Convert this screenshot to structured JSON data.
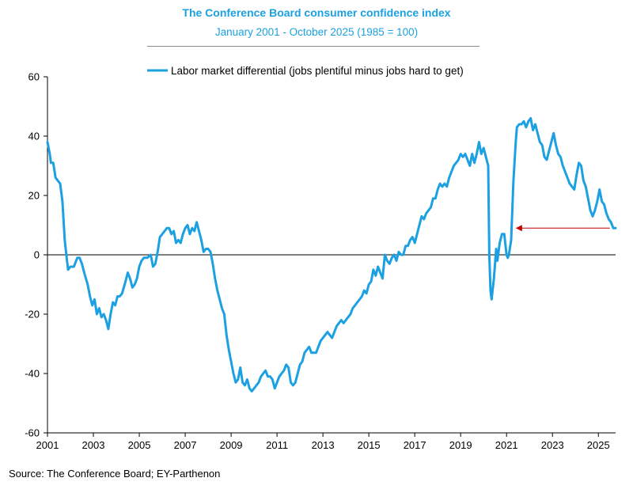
{
  "chart_data": {
    "type": "line",
    "title": "The Conference Board consumer confidence index",
    "subtitle": "January 2001 - October 2025 (1985 = 100)",
    "xlabel": "",
    "ylabel": "",
    "xlim": [
      2001,
      2025.75
    ],
    "ylim": [
      -60,
      60
    ],
    "yticks": [
      -60,
      -40,
      -20,
      0,
      20,
      40,
      60
    ],
    "xticks": [
      2001,
      2003,
      2005,
      2007,
      2009,
      2011,
      2013,
      2015,
      2017,
      2019,
      2021,
      2023,
      2025
    ],
    "legend_position": "top-center",
    "grid": false,
    "series": [
      {
        "name": "Labor market differential (jobs plentiful minus jobs hard to get)",
        "color": "#1ba1e2",
        "points": [
          [
            2001.0,
            38
          ],
          [
            2001.1,
            34
          ],
          [
            2001.15,
            31
          ],
          [
            2001.25,
            31
          ],
          [
            2001.35,
            26
          ],
          [
            2001.45,
            25
          ],
          [
            2001.55,
            24
          ],
          [
            2001.65,
            18
          ],
          [
            2001.75,
            5
          ],
          [
            2001.85,
            -2
          ],
          [
            2001.9,
            -5
          ],
          [
            2002.0,
            -4
          ],
          [
            2002.15,
            -4
          ],
          [
            2002.3,
            -1
          ],
          [
            2002.4,
            -1
          ],
          [
            2002.5,
            -3
          ],
          [
            2002.6,
            -6
          ],
          [
            2002.75,
            -10
          ],
          [
            2002.85,
            -14
          ],
          [
            2002.95,
            -17
          ],
          [
            2003.05,
            -15
          ],
          [
            2003.15,
            -20
          ],
          [
            2003.25,
            -18
          ],
          [
            2003.35,
            -21
          ],
          [
            2003.45,
            -20
          ],
          [
            2003.55,
            -22
          ],
          [
            2003.65,
            -25
          ],
          [
            2003.75,
            -20
          ],
          [
            2003.85,
            -16
          ],
          [
            2003.95,
            -17
          ],
          [
            2004.05,
            -14
          ],
          [
            2004.15,
            -14
          ],
          [
            2004.25,
            -13
          ],
          [
            2004.4,
            -9
          ],
          [
            2004.5,
            -6
          ],
          [
            2004.6,
            -8
          ],
          [
            2004.7,
            -11
          ],
          [
            2004.8,
            -10
          ],
          [
            2004.9,
            -8
          ],
          [
            2005.0,
            -4
          ],
          [
            2005.1,
            -2
          ],
          [
            2005.2,
            -1
          ],
          [
            2005.35,
            -1
          ],
          [
            2005.5,
            0
          ],
          [
            2005.6,
            -4
          ],
          [
            2005.7,
            -3
          ],
          [
            2005.8,
            1
          ],
          [
            2005.9,
            6
          ],
          [
            2006.0,
            7
          ],
          [
            2006.1,
            8
          ],
          [
            2006.2,
            9
          ],
          [
            2006.3,
            9
          ],
          [
            2006.4,
            7
          ],
          [
            2006.5,
            8
          ],
          [
            2006.6,
            4
          ],
          [
            2006.7,
            5
          ],
          [
            2006.8,
            4
          ],
          [
            2006.9,
            7
          ],
          [
            2007.0,
            9
          ],
          [
            2007.1,
            10
          ],
          [
            2007.2,
            7
          ],
          [
            2007.3,
            9
          ],
          [
            2007.4,
            8
          ],
          [
            2007.5,
            11
          ],
          [
            2007.6,
            8
          ],
          [
            2007.7,
            5
          ],
          [
            2007.8,
            1
          ],
          [
            2007.9,
            2
          ],
          [
            2008.0,
            2
          ],
          [
            2008.1,
            1
          ],
          [
            2008.2,
            -3
          ],
          [
            2008.3,
            -8
          ],
          [
            2008.4,
            -12
          ],
          [
            2008.5,
            -15
          ],
          [
            2008.6,
            -18
          ],
          [
            2008.7,
            -20
          ],
          [
            2008.8,
            -27
          ],
          [
            2008.9,
            -32
          ],
          [
            2009.0,
            -36
          ],
          [
            2009.1,
            -40
          ],
          [
            2009.2,
            -43
          ],
          [
            2009.3,
            -42
          ],
          [
            2009.4,
            -38
          ],
          [
            2009.5,
            -43
          ],
          [
            2009.6,
            -44
          ],
          [
            2009.7,
            -42
          ],
          [
            2009.8,
            -45
          ],
          [
            2009.9,
            -46
          ],
          [
            2010.0,
            -45
          ],
          [
            2010.1,
            -44
          ],
          [
            2010.2,
            -43
          ],
          [
            2010.3,
            -41
          ],
          [
            2010.4,
            -40
          ],
          [
            2010.5,
            -39
          ],
          [
            2010.6,
            -41
          ],
          [
            2010.7,
            -41
          ],
          [
            2010.8,
            -42
          ],
          [
            2010.9,
            -45
          ],
          [
            2011.0,
            -43
          ],
          [
            2011.1,
            -41
          ],
          [
            2011.2,
            -40
          ],
          [
            2011.3,
            -39
          ],
          [
            2011.4,
            -37
          ],
          [
            2011.5,
            -38
          ],
          [
            2011.6,
            -43
          ],
          [
            2011.7,
            -44
          ],
          [
            2011.8,
            -43
          ],
          [
            2011.9,
            -40
          ],
          [
            2012.0,
            -37
          ],
          [
            2012.1,
            -36
          ],
          [
            2012.2,
            -33
          ],
          [
            2012.3,
            -32
          ],
          [
            2012.4,
            -31
          ],
          [
            2012.5,
            -33
          ],
          [
            2012.6,
            -33
          ],
          [
            2012.7,
            -33
          ],
          [
            2012.8,
            -31
          ],
          [
            2012.9,
            -29
          ],
          [
            2013.0,
            -28
          ],
          [
            2013.1,
            -27
          ],
          [
            2013.2,
            -26
          ],
          [
            2013.3,
            -27
          ],
          [
            2013.4,
            -28
          ],
          [
            2013.5,
            -26
          ],
          [
            2013.6,
            -24
          ],
          [
            2013.7,
            -23
          ],
          [
            2013.8,
            -22
          ],
          [
            2013.9,
            -23
          ],
          [
            2014.0,
            -22
          ],
          [
            2014.1,
            -21
          ],
          [
            2014.2,
            -20
          ],
          [
            2014.3,
            -18
          ],
          [
            2014.4,
            -17
          ],
          [
            2014.5,
            -16
          ],
          [
            2014.6,
            -15
          ],
          [
            2014.7,
            -14
          ],
          [
            2014.8,
            -12
          ],
          [
            2014.9,
            -13
          ],
          [
            2015.0,
            -10
          ],
          [
            2015.1,
            -9
          ],
          [
            2015.2,
            -5
          ],
          [
            2015.3,
            -7
          ],
          [
            2015.4,
            -4
          ],
          [
            2015.5,
            -6
          ],
          [
            2015.6,
            -8
          ],
          [
            2015.7,
            0
          ],
          [
            2015.8,
            -2
          ],
          [
            2015.9,
            -3
          ],
          [
            2016.0,
            -1
          ],
          [
            2016.1,
            0
          ],
          [
            2016.2,
            -2
          ],
          [
            2016.3,
            1
          ],
          [
            2016.4,
            0
          ],
          [
            2016.5,
            0
          ],
          [
            2016.6,
            3
          ],
          [
            2016.7,
            3
          ],
          [
            2016.8,
            5
          ],
          [
            2016.9,
            6
          ],
          [
            2017.0,
            4
          ],
          [
            2017.1,
            7
          ],
          [
            2017.2,
            10
          ],
          [
            2017.3,
            13
          ],
          [
            2017.4,
            12
          ],
          [
            2017.5,
            14
          ],
          [
            2017.6,
            15
          ],
          [
            2017.7,
            16
          ],
          [
            2017.8,
            19
          ],
          [
            2017.9,
            19
          ],
          [
            2018.0,
            22
          ],
          [
            2018.1,
            24
          ],
          [
            2018.2,
            23
          ],
          [
            2018.3,
            24
          ],
          [
            2018.4,
            23
          ],
          [
            2018.5,
            26
          ],
          [
            2018.6,
            28
          ],
          [
            2018.7,
            30
          ],
          [
            2018.8,
            31
          ],
          [
            2018.9,
            32
          ],
          [
            2019.0,
            34
          ],
          [
            2019.1,
            33
          ],
          [
            2019.2,
            34
          ],
          [
            2019.3,
            32
          ],
          [
            2019.4,
            30
          ],
          [
            2019.5,
            34
          ],
          [
            2019.6,
            31
          ],
          [
            2019.7,
            34
          ],
          [
            2019.8,
            38
          ],
          [
            2019.9,
            34
          ],
          [
            2020.0,
            36
          ],
          [
            2020.1,
            33
          ],
          [
            2020.2,
            30
          ],
          [
            2020.25,
            0
          ],
          [
            2020.3,
            -12
          ],
          [
            2020.35,
            -15
          ],
          [
            2020.45,
            -8
          ],
          [
            2020.55,
            2
          ],
          [
            2020.6,
            -2
          ],
          [
            2020.7,
            4
          ],
          [
            2020.8,
            7
          ],
          [
            2020.9,
            7
          ],
          [
            2021.0,
            0
          ],
          [
            2021.05,
            -1
          ],
          [
            2021.1,
            0
          ],
          [
            2021.2,
            5
          ],
          [
            2021.3,
            25
          ],
          [
            2021.4,
            38
          ],
          [
            2021.45,
            43
          ],
          [
            2021.55,
            44
          ],
          [
            2021.65,
            44
          ],
          [
            2021.75,
            45
          ],
          [
            2021.85,
            43
          ],
          [
            2021.95,
            45
          ],
          [
            2022.05,
            46
          ],
          [
            2022.15,
            42
          ],
          [
            2022.25,
            44
          ],
          [
            2022.35,
            41
          ],
          [
            2022.45,
            38
          ],
          [
            2022.55,
            37
          ],
          [
            2022.65,
            33
          ],
          [
            2022.75,
            32
          ],
          [
            2022.85,
            35
          ],
          [
            2022.95,
            38
          ],
          [
            2023.05,
            41
          ],
          [
            2023.15,
            37
          ],
          [
            2023.25,
            34
          ],
          [
            2023.35,
            33
          ],
          [
            2023.45,
            30
          ],
          [
            2023.55,
            28
          ],
          [
            2023.65,
            26
          ],
          [
            2023.75,
            24
          ],
          [
            2023.85,
            23
          ],
          [
            2023.95,
            22
          ],
          [
            2024.05,
            27
          ],
          [
            2024.15,
            31
          ],
          [
            2024.25,
            30
          ],
          [
            2024.35,
            25
          ],
          [
            2024.45,
            23
          ],
          [
            2024.55,
            19
          ],
          [
            2024.65,
            15
          ],
          [
            2024.75,
            13
          ],
          [
            2024.85,
            15
          ],
          [
            2024.95,
            18
          ],
          [
            2025.05,
            22
          ],
          [
            2025.15,
            18
          ],
          [
            2025.25,
            17
          ],
          [
            2025.35,
            14
          ],
          [
            2025.45,
            12
          ],
          [
            2025.55,
            11
          ],
          [
            2025.65,
            9
          ],
          [
            2025.75,
            9
          ]
        ]
      }
    ],
    "annotations": [
      {
        "type": "arrow",
        "from": [
          2025.5,
          9
        ],
        "to": [
          2021.4,
          9
        ],
        "color": "#c00000"
      }
    ]
  },
  "ui": {
    "title": "The Conference Board consumer confidence index",
    "subtitle": "January 2001 - October 2025 (1985 = 100)",
    "legend_label": "Labor market differential (jobs plentiful minus jobs hard to get)",
    "source": "Source: The Conference Board; EY-Parthenon"
  }
}
